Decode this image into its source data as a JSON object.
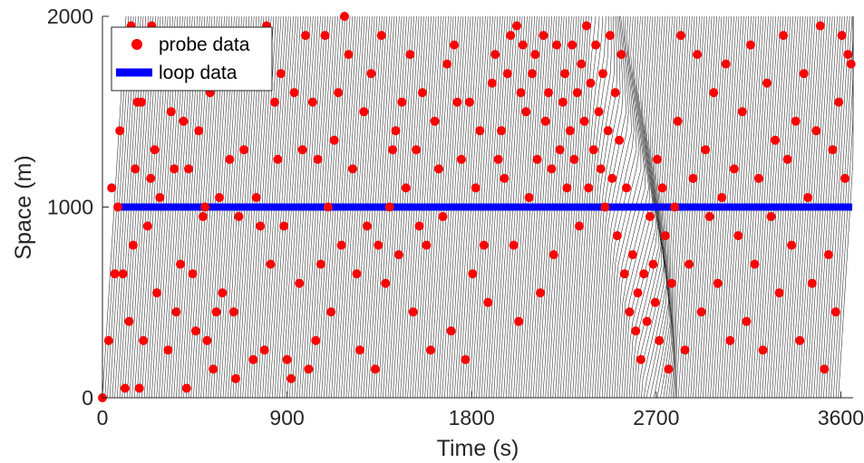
{
  "chart_data": {
    "type": "scatter",
    "xlabel": "Time (s)",
    "ylabel": "Space (m)",
    "xlim": [
      0,
      3660
    ],
    "ylim": [
      0,
      2000
    ],
    "xticks": [
      0,
      900,
      1800,
      2700,
      3600
    ],
    "yticks": [
      0,
      1000,
      2000
    ],
    "xtick_labels": [
      "0",
      "900",
      "1800",
      "2700",
      "3600"
    ],
    "ytick_labels": [
      "0",
      "1000",
      "2000"
    ],
    "grid": false,
    "legend_position": "top-left",
    "colors": {
      "probe": "#ff0000",
      "loop": "#0000ff",
      "trajectories": "#000000",
      "axis": "#262626"
    },
    "trajectories": {
      "description_free": true,
      "headway_s": 12,
      "count": 300,
      "free_travel_time_s": 115,
      "congestion": {
        "t_start": 2380,
        "t_end": 2800,
        "front_space_start": 2000,
        "front_space_end": 0,
        "extra_delay_s": 95
      }
    },
    "series": [
      {
        "name": "probe data",
        "marker": "circle",
        "color": "#ff0000",
        "points": [
          [
            0,
            0
          ],
          [
            30,
            300
          ],
          [
            45,
            1100
          ],
          [
            60,
            650
          ],
          [
            75,
            1000
          ],
          [
            85,
            1400
          ],
          [
            100,
            650
          ],
          [
            110,
            50
          ],
          [
            120,
            1700
          ],
          [
            130,
            400
          ],
          [
            140,
            1950
          ],
          [
            150,
            800
          ],
          [
            160,
            1200
          ],
          [
            170,
            1550
          ],
          [
            180,
            50
          ],
          [
            190,
            1550
          ],
          [
            200,
            300
          ],
          [
            210,
            1700
          ],
          [
            220,
            900
          ],
          [
            235,
            1150
          ],
          [
            240,
            1950
          ],
          [
            255,
            1300
          ],
          [
            265,
            550
          ],
          [
            280,
            1050
          ],
          [
            300,
            1750
          ],
          [
            320,
            250
          ],
          [
            335,
            1500
          ],
          [
            350,
            1200
          ],
          [
            360,
            450
          ],
          [
            380,
            700
          ],
          [
            395,
            1450
          ],
          [
            410,
            50
          ],
          [
            420,
            1200
          ],
          [
            440,
            650
          ],
          [
            455,
            350
          ],
          [
            470,
            1400
          ],
          [
            490,
            950
          ],
          [
            500,
            1000
          ],
          [
            510,
            300
          ],
          [
            525,
            1600
          ],
          [
            540,
            150
          ],
          [
            555,
            450
          ],
          [
            570,
            1050
          ],
          [
            585,
            550
          ],
          [
            600,
            1800
          ],
          [
            620,
            1250
          ],
          [
            640,
            450
          ],
          [
            650,
            100
          ],
          [
            665,
            950
          ],
          [
            690,
            1300
          ],
          [
            710,
            1850
          ],
          [
            720,
            1750
          ],
          [
            735,
            200
          ],
          [
            750,
            1050
          ],
          [
            770,
            900
          ],
          [
            790,
            250
          ],
          [
            800,
            1950
          ],
          [
            820,
            700
          ],
          [
            840,
            1550
          ],
          [
            855,
            1250
          ],
          [
            870,
            1700
          ],
          [
            885,
            900
          ],
          [
            900,
            200
          ],
          [
            920,
            100
          ],
          [
            935,
            1600
          ],
          [
            960,
            600
          ],
          [
            975,
            1300
          ],
          [
            990,
            1900
          ],
          [
            1005,
            150
          ],
          [
            1025,
            1550
          ],
          [
            1040,
            300
          ],
          [
            1050,
            1250
          ],
          [
            1065,
            700
          ],
          [
            1085,
            1900
          ],
          [
            1100,
            1000
          ],
          [
            1115,
            450
          ],
          [
            1130,
            1350
          ],
          [
            1150,
            1600
          ],
          [
            1165,
            800
          ],
          [
            1180,
            2000
          ],
          [
            1200,
            1800
          ],
          [
            1220,
            1200
          ],
          [
            1240,
            650
          ],
          [
            1255,
            250
          ],
          [
            1275,
            1500
          ],
          [
            1290,
            900
          ],
          [
            1310,
            1700
          ],
          [
            1330,
            150
          ],
          [
            1345,
            800
          ],
          [
            1360,
            1900
          ],
          [
            1380,
            600
          ],
          [
            1400,
            1000
          ],
          [
            1415,
            1300
          ],
          [
            1430,
            1400
          ],
          [
            1445,
            750
          ],
          [
            1460,
            1550
          ],
          [
            1480,
            1100
          ],
          [
            1500,
            1800
          ],
          [
            1515,
            450
          ],
          [
            1530,
            1300
          ],
          [
            1545,
            900
          ],
          [
            1560,
            1600
          ],
          [
            1580,
            800
          ],
          [
            1600,
            250
          ],
          [
            1620,
            1450
          ],
          [
            1640,
            1200
          ],
          [
            1660,
            950
          ],
          [
            1680,
            1750
          ],
          [
            1700,
            350
          ],
          [
            1715,
            1850
          ],
          [
            1730,
            1550
          ],
          [
            1750,
            1250
          ],
          [
            1770,
            200
          ],
          [
            1790,
            1550
          ],
          [
            1805,
            650
          ],
          [
            1820,
            1100
          ],
          [
            1840,
            1400
          ],
          [
            1860,
            800
          ],
          [
            1880,
            500
          ],
          [
            1900,
            1650
          ],
          [
            1915,
            1800
          ],
          [
            1930,
            1250
          ],
          [
            1945,
            1400
          ],
          [
            1960,
            1150
          ],
          [
            1975,
            1700
          ],
          [
            1990,
            1900
          ],
          [
            2005,
            800
          ],
          [
            2020,
            1950
          ],
          [
            2030,
            400
          ],
          [
            2040,
            1600
          ],
          [
            2050,
            1850
          ],
          [
            2065,
            1500
          ],
          [
            2080,
            1050
          ],
          [
            2095,
            1700
          ],
          [
            2110,
            1800
          ],
          [
            2120,
            1250
          ],
          [
            2135,
            550
          ],
          [
            2150,
            1900
          ],
          [
            2160,
            1450
          ],
          [
            2175,
            1600
          ],
          [
            2190,
            1200
          ],
          [
            2200,
            750
          ],
          [
            2215,
            1850
          ],
          [
            2230,
            1300
          ],
          [
            2245,
            1550
          ],
          [
            2255,
            1700
          ],
          [
            2265,
            1100
          ],
          [
            2280,
            1400
          ],
          [
            2290,
            1850
          ],
          [
            2300,
            1250
          ],
          [
            2315,
            1600
          ],
          [
            2325,
            900
          ],
          [
            2335,
            1750
          ],
          [
            2350,
            1450
          ],
          [
            2360,
            1950
          ],
          [
            2370,
            1100
          ],
          [
            2380,
            1650
          ],
          [
            2395,
            1300
          ],
          [
            2405,
            1850
          ],
          [
            2420,
            1500
          ],
          [
            2430,
            1200
          ],
          [
            2440,
            1700
          ],
          [
            2450,
            1000
          ],
          [
            2465,
            1400
          ],
          [
            2475,
            1900
          ],
          [
            2485,
            1150
          ],
          [
            2500,
            1600
          ],
          [
            2510,
            850
          ],
          [
            2520,
            1350
          ],
          [
            2530,
            1800
          ],
          [
            2545,
            650
          ],
          [
            2555,
            1100
          ],
          [
            2570,
            450
          ],
          [
            2585,
            750
          ],
          [
            2600,
            350
          ],
          [
            2610,
            550
          ],
          [
            2625,
            200
          ],
          [
            2640,
            650
          ],
          [
            2655,
            400
          ],
          [
            2670,
            950
          ],
          [
            2685,
            700
          ],
          [
            2695,
            500
          ],
          [
            2705,
            1250
          ],
          [
            2715,
            300
          ],
          [
            2730,
            1100
          ],
          [
            2745,
            850
          ],
          [
            2760,
            150
          ],
          [
            2775,
            600
          ],
          [
            2790,
            1000
          ],
          [
            2805,
            1450
          ],
          [
            2820,
            1900
          ],
          [
            2840,
            250
          ],
          [
            2860,
            700
          ],
          [
            2880,
            1150
          ],
          [
            2900,
            1800
          ],
          [
            2920,
            450
          ],
          [
            2940,
            1300
          ],
          [
            2960,
            950
          ],
          [
            2980,
            1600
          ],
          [
            3000,
            600
          ],
          [
            3020,
            1050
          ],
          [
            3040,
            1750
          ],
          [
            3060,
            300
          ],
          [
            3080,
            1200
          ],
          [
            3100,
            850
          ],
          [
            3120,
            1500
          ],
          [
            3140,
            400
          ],
          [
            3160,
            1850
          ],
          [
            3180,
            700
          ],
          [
            3200,
            1150
          ],
          [
            3220,
            250
          ],
          [
            3240,
            1650
          ],
          [
            3260,
            950
          ],
          [
            3280,
            1350
          ],
          [
            3300,
            550
          ],
          [
            3320,
            1900
          ],
          [
            3340,
            1250
          ],
          [
            3360,
            800
          ],
          [
            3380,
            1450
          ],
          [
            3400,
            300
          ],
          [
            3420,
            1700
          ],
          [
            3440,
            1050
          ],
          [
            3460,
            600
          ],
          [
            3480,
            1400
          ],
          [
            3500,
            1950
          ],
          [
            3520,
            150
          ],
          [
            3540,
            750
          ],
          [
            3560,
            1300
          ],
          [
            3575,
            450
          ],
          [
            3590,
            1550
          ],
          [
            3605,
            1900
          ],
          [
            3620,
            1150
          ],
          [
            3635,
            1800
          ],
          [
            3650,
            1750
          ]
        ]
      },
      {
        "name": "loop data",
        "marker": "line",
        "color": "#0000ff",
        "y": 1000
      }
    ]
  }
}
